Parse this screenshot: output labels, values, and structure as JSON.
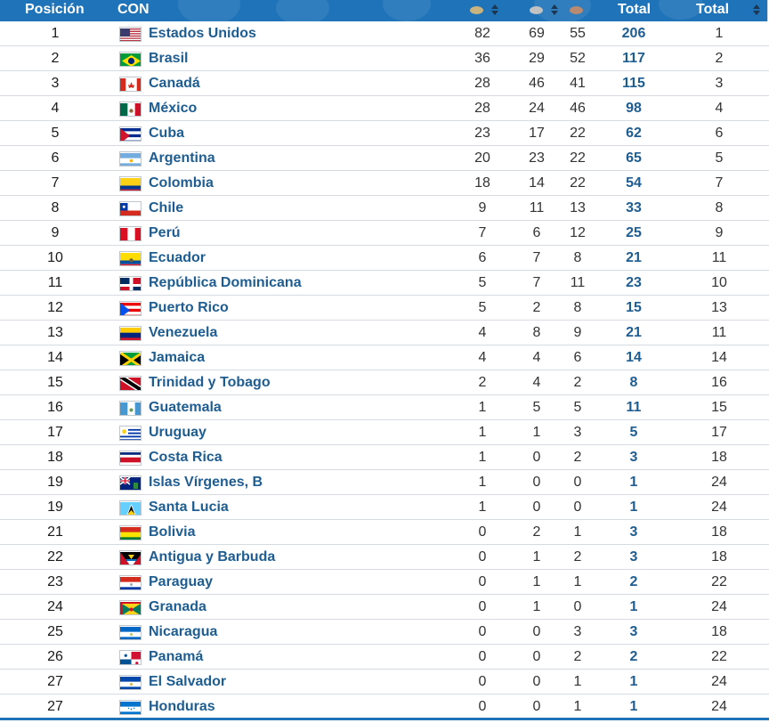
{
  "header": {
    "position_label": "Posición",
    "country_label": "CON",
    "total_label": "Total",
    "rank_total_label": "Total",
    "medal_colors": {
      "gold": "#c9b37e",
      "silver": "#c2c2c2",
      "bronze": "#b98a70"
    },
    "header_color": "#1f73b8"
  },
  "rows": [
    {
      "pos": "1",
      "name": "Estados Unidos",
      "flag": "usa",
      "gold": "82",
      "silver": "69",
      "bronze": "55",
      "total": "206",
      "rank": "1"
    },
    {
      "pos": "2",
      "name": "Brasil",
      "flag": "bra",
      "gold": "36",
      "silver": "29",
      "bronze": "52",
      "total": "117",
      "rank": "2"
    },
    {
      "pos": "3",
      "name": "Canadá",
      "flag": "can",
      "gold": "28",
      "silver": "46",
      "bronze": "41",
      "total": "115",
      "rank": "3"
    },
    {
      "pos": "4",
      "name": "México",
      "flag": "mex",
      "gold": "28",
      "silver": "24",
      "bronze": "46",
      "total": "98",
      "rank": "4"
    },
    {
      "pos": "5",
      "name": "Cuba",
      "flag": "cub",
      "gold": "23",
      "silver": "17",
      "bronze": "22",
      "total": "62",
      "rank": "6"
    },
    {
      "pos": "6",
      "name": "Argentina",
      "flag": "arg",
      "gold": "20",
      "silver": "23",
      "bronze": "22",
      "total": "65",
      "rank": "5"
    },
    {
      "pos": "7",
      "name": "Colombia",
      "flag": "col",
      "gold": "18",
      "silver": "14",
      "bronze": "22",
      "total": "54",
      "rank": "7"
    },
    {
      "pos": "8",
      "name": "Chile",
      "flag": "chi",
      "gold": "9",
      "silver": "11",
      "bronze": "13",
      "total": "33",
      "rank": "8"
    },
    {
      "pos": "9",
      "name": "Perú",
      "flag": "per",
      "gold": "7",
      "silver": "6",
      "bronze": "12",
      "total": "25",
      "rank": "9"
    },
    {
      "pos": "10",
      "name": "Ecuador",
      "flag": "ecu",
      "gold": "6",
      "silver": "7",
      "bronze": "8",
      "total": "21",
      "rank": "11"
    },
    {
      "pos": "11",
      "name": "República Dominicana",
      "flag": "dom",
      "gold": "5",
      "silver": "7",
      "bronze": "11",
      "total": "23",
      "rank": "10"
    },
    {
      "pos": "12",
      "name": "Puerto Rico",
      "flag": "pur",
      "gold": "5",
      "silver": "2",
      "bronze": "8",
      "total": "15",
      "rank": "13"
    },
    {
      "pos": "13",
      "name": "Venezuela",
      "flag": "ven",
      "gold": "4",
      "silver": "8",
      "bronze": "9",
      "total": "21",
      "rank": "11"
    },
    {
      "pos": "14",
      "name": "Jamaica",
      "flag": "jam",
      "gold": "4",
      "silver": "4",
      "bronze": "6",
      "total": "14",
      "rank": "14"
    },
    {
      "pos": "15",
      "name": "Trinidad y Tobago",
      "flag": "tto",
      "gold": "2",
      "silver": "4",
      "bronze": "2",
      "total": "8",
      "rank": "16"
    },
    {
      "pos": "16",
      "name": "Guatemala",
      "flag": "gua",
      "gold": "1",
      "silver": "5",
      "bronze": "5",
      "total": "11",
      "rank": "15"
    },
    {
      "pos": "17",
      "name": "Uruguay",
      "flag": "uru",
      "gold": "1",
      "silver": "1",
      "bronze": "3",
      "total": "5",
      "rank": "17"
    },
    {
      "pos": "18",
      "name": "Costa Rica",
      "flag": "crc",
      "gold": "1",
      "silver": "0",
      "bronze": "2",
      "total": "3",
      "rank": "18"
    },
    {
      "pos": "19",
      "name": "Islas Vírgenes, B",
      "flag": "ivb",
      "gold": "1",
      "silver": "0",
      "bronze": "0",
      "total": "1",
      "rank": "24"
    },
    {
      "pos": "19",
      "name": "Santa Lucia",
      "flag": "lca",
      "gold": "1",
      "silver": "0",
      "bronze": "0",
      "total": "1",
      "rank": "24"
    },
    {
      "pos": "21",
      "name": "Bolivia",
      "flag": "bol",
      "gold": "0",
      "silver": "2",
      "bronze": "1",
      "total": "3",
      "rank": "18"
    },
    {
      "pos": "22",
      "name": "Antigua y Barbuda",
      "flag": "ant",
      "gold": "0",
      "silver": "1",
      "bronze": "2",
      "total": "3",
      "rank": "18"
    },
    {
      "pos": "23",
      "name": "Paraguay",
      "flag": "par",
      "gold": "0",
      "silver": "1",
      "bronze": "1",
      "total": "2",
      "rank": "22"
    },
    {
      "pos": "24",
      "name": "Granada",
      "flag": "grn",
      "gold": "0",
      "silver": "1",
      "bronze": "0",
      "total": "1",
      "rank": "24"
    },
    {
      "pos": "25",
      "name": "Nicaragua",
      "flag": "nca",
      "gold": "0",
      "silver": "0",
      "bronze": "3",
      "total": "3",
      "rank": "18"
    },
    {
      "pos": "26",
      "name": "Panamá",
      "flag": "pan",
      "gold": "0",
      "silver": "0",
      "bronze": "2",
      "total": "2",
      "rank": "22"
    },
    {
      "pos": "27",
      "name": "El Salvador",
      "flag": "esa",
      "gold": "0",
      "silver": "0",
      "bronze": "1",
      "total": "1",
      "rank": "24"
    },
    {
      "pos": "27",
      "name": "Honduras",
      "flag": "hon",
      "gold": "0",
      "silver": "0",
      "bronze": "1",
      "total": "1",
      "rank": "24"
    }
  ]
}
